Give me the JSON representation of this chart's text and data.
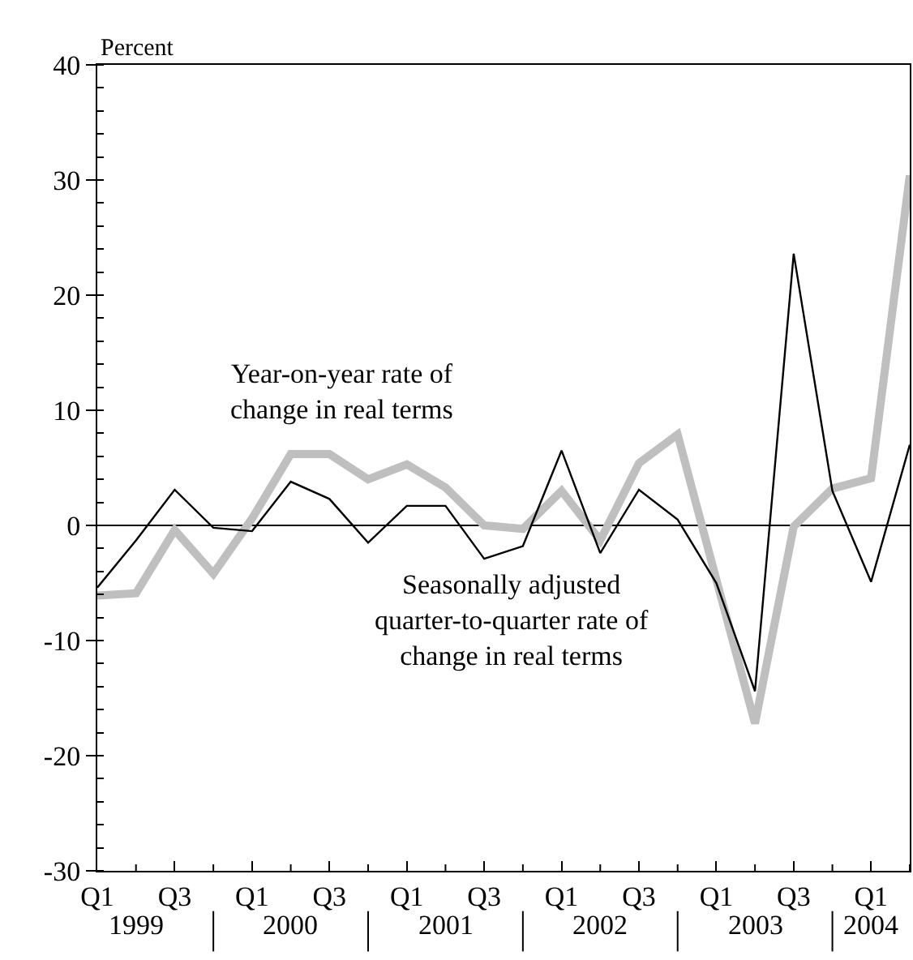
{
  "chart_data": {
    "type": "line",
    "ylabel": "Percent",
    "categories": [
      "Q1",
      null,
      "Q3",
      null,
      "Q1",
      null,
      "Q3",
      null,
      "Q1",
      null,
      "Q3",
      null,
      "Q1",
      null,
      "Q3",
      null,
      "Q1",
      null,
      "Q3",
      null,
      "Q1",
      null
    ],
    "series": [
      {
        "name": "Year-on-year rate of change in real terms",
        "color": "#bfbfbf",
        "values": [
          -6.1,
          -5.9,
          -0.4,
          -4.2,
          0.6,
          6.2,
          6.2,
          4.0,
          5.3,
          3.3,
          0.0,
          -0.3,
          3.0,
          -1.3,
          5.4,
          7.9,
          -4.7,
          -17.2,
          -0.1,
          3.2,
          4.1,
          30.4
        ]
      },
      {
        "name": "Seasonally adjusted quarter-to-quarter rate of change in real terms",
        "color": "#000000",
        "values": [
          -5.4,
          -1.3,
          3.1,
          -0.2,
          -0.5,
          3.8,
          2.3,
          -1.5,
          1.7,
          1.7,
          -2.9,
          -1.8,
          6.5,
          -2.4,
          3.1,
          0.5,
          -5.0,
          -14.4,
          23.6,
          3.0,
          -4.9,
          7.0
        ]
      }
    ],
    "annotations": [
      "1999",
      "2000",
      "2001",
      "2002",
      "2003",
      "2004"
    ],
    "ylim": [
      -30,
      40
    ],
    "yticks": [
      -30,
      -20,
      -10,
      0,
      10,
      20,
      30,
      40
    ],
    "ref_lines": [
      {
        "axis": "y",
        "value": 0,
        "color": "#000000"
      }
    ],
    "grid": false,
    "legend": false,
    "marker": "none",
    "line_style": "solid"
  }
}
